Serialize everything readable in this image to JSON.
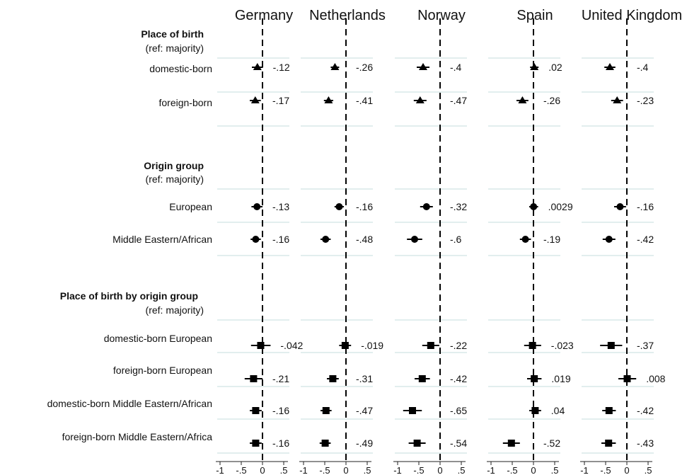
{
  "chart_data": {
    "type": "scatter",
    "subtype": "coefficient-plot",
    "title": "",
    "panels": [
      "Germany",
      "Netherlands",
      "Norway",
      "Spain",
      "United Kingdom"
    ],
    "xlim": [
      -1.1,
      0.6
    ],
    "xticks": [
      -1,
      -0.5,
      0,
      0.5
    ],
    "xtick_labels": [
      "-1",
      "-.5",
      "0",
      ".5"
    ],
    "reference_line": 0,
    "sections": [
      {
        "title": "Place of birth",
        "subtitle": "(ref: majority)",
        "marker": "triangle",
        "rows": [
          "r0",
          "r1"
        ]
      },
      {
        "title": "Origin group",
        "subtitle": "(ref: majority)",
        "marker": "circle",
        "rows": [
          "r2",
          "r3"
        ]
      },
      {
        "title": "Place of birth by origin group",
        "subtitle": "(ref: majority)",
        "marker": "square",
        "rows": [
          "r4",
          "r5",
          "r6",
          "r7"
        ]
      }
    ],
    "rows": [
      {
        "id": "r0",
        "label": "domestic-born",
        "marker": "triangle",
        "est": [
          -0.12,
          -0.26,
          -0.4,
          0.02,
          -0.4
        ],
        "ci_lo": [
          -0.25,
          -0.36,
          -0.55,
          -0.08,
          -0.53
        ],
        "ci_hi": [
          0.01,
          -0.16,
          -0.25,
          0.12,
          -0.27
        ],
        "labels": [
          "-.12",
          "-.26",
          "-.4",
          ".02",
          "-.4"
        ]
      },
      {
        "id": "r1",
        "label": "foreign-born",
        "marker": "triangle",
        "est": [
          -0.17,
          -0.41,
          -0.47,
          -0.26,
          -0.23
        ],
        "ci_lo": [
          -0.3,
          -0.52,
          -0.62,
          -0.4,
          -0.37
        ],
        "ci_hi": [
          -0.04,
          -0.3,
          -0.32,
          -0.12,
          -0.09
        ],
        "labels": [
          "-.17",
          "-.41",
          "-.47",
          "-.26",
          "-.23"
        ]
      },
      {
        "id": "r2",
        "label": "European",
        "marker": "circle",
        "est": [
          -0.13,
          -0.16,
          -0.32,
          0.0029,
          -0.16
        ],
        "ci_lo": [
          -0.26,
          -0.27,
          -0.47,
          -0.1,
          -0.3
        ],
        "ci_hi": [
          0.0,
          -0.05,
          -0.17,
          0.11,
          -0.02
        ],
        "labels": [
          "-.13",
          "-.16",
          "-.32",
          ".0029",
          "-.16"
        ]
      },
      {
        "id": "r3",
        "label": "Middle Eastern/African",
        "marker": "circle",
        "est": [
          -0.16,
          -0.48,
          -0.6,
          -0.19,
          -0.42
        ],
        "ci_lo": [
          -0.28,
          -0.6,
          -0.78,
          -0.32,
          -0.57
        ],
        "ci_hi": [
          -0.04,
          -0.36,
          -0.42,
          -0.06,
          -0.27
        ],
        "labels": [
          "-.16",
          "-.48",
          "-.6",
          "-.19",
          "-.42"
        ]
      },
      {
        "id": "r4",
        "label": "domestic-born European",
        "marker": "square",
        "est": [
          -0.042,
          -0.019,
          -0.22,
          -0.023,
          -0.37
        ],
        "ci_lo": [
          -0.27,
          -0.16,
          -0.42,
          -0.22,
          -0.63
        ],
        "ci_hi": [
          0.19,
          0.12,
          -0.02,
          0.18,
          -0.11
        ],
        "labels": [
          "-.042",
          "-.019",
          "-.22",
          "-.023",
          "-.37"
        ]
      },
      {
        "id": "r5",
        "label": "foreign-born European",
        "marker": "square",
        "est": [
          -0.21,
          -0.31,
          -0.42,
          0.019,
          0.008
        ],
        "ci_lo": [
          -0.42,
          -0.45,
          -0.6,
          -0.15,
          -0.2
        ],
        "ci_hi": [
          0.0,
          -0.17,
          -0.24,
          0.19,
          0.22
        ],
        "labels": [
          "-.21",
          "-.31",
          "-.42",
          ".019",
          ".008"
        ]
      },
      {
        "id": "r6",
        "label": "domestic-born Middle Eastern/African",
        "marker": "square",
        "est": [
          -0.16,
          -0.47,
          -0.65,
          0.04,
          -0.42
        ],
        "ci_lo": [
          -0.3,
          -0.6,
          -0.87,
          -0.1,
          -0.58
        ],
        "ci_hi": [
          -0.02,
          -0.34,
          -0.43,
          0.18,
          -0.26
        ],
        "labels": [
          "-.16",
          "-.47",
          "-.65",
          ".04",
          "-.42"
        ]
      },
      {
        "id": "r7",
        "label": "foreign-born Middle Eastern/Africa",
        "marker": "square",
        "est": [
          -0.16,
          -0.49,
          -0.54,
          -0.52,
          -0.43
        ],
        "ci_lo": [
          -0.3,
          -0.62,
          -0.74,
          -0.72,
          -0.6
        ],
        "ci_hi": [
          -0.02,
          -0.36,
          -0.34,
          -0.32,
          -0.26
        ],
        "labels": [
          "-.16",
          "-.49",
          "-.54",
          "-.52",
          "-.43"
        ]
      }
    ],
    "grid": true,
    "legend": "none"
  },
  "colors": {
    "marker": "#000000",
    "gridline": "#e2eeee",
    "text": "#111111"
  }
}
